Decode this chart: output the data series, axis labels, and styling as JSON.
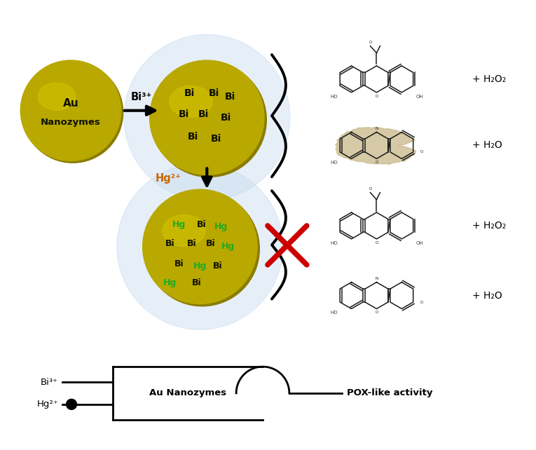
{
  "bg_color": "#ffffff",
  "au_color": "#b8a800",
  "au_light": "#d4c400",
  "au_dark": "#8a7c00",
  "glow_color": "#c8dcf0",
  "hg_text_color": "#22aa22",
  "bi_text_color": "#1a1a00",
  "arrow_color": "#111111",
  "red_x_color": "#cc0000",
  "tan_blob_color": "#c8b888",
  "gate_label": "Au Nanozymes",
  "pox_label": "POX-like activity",
  "h2o2_label": "+ H₂O₂",
  "h2o_label": "+ H₂O",
  "bi3_label": "Bi³⁺",
  "hg2_label": "Hg²⁺"
}
